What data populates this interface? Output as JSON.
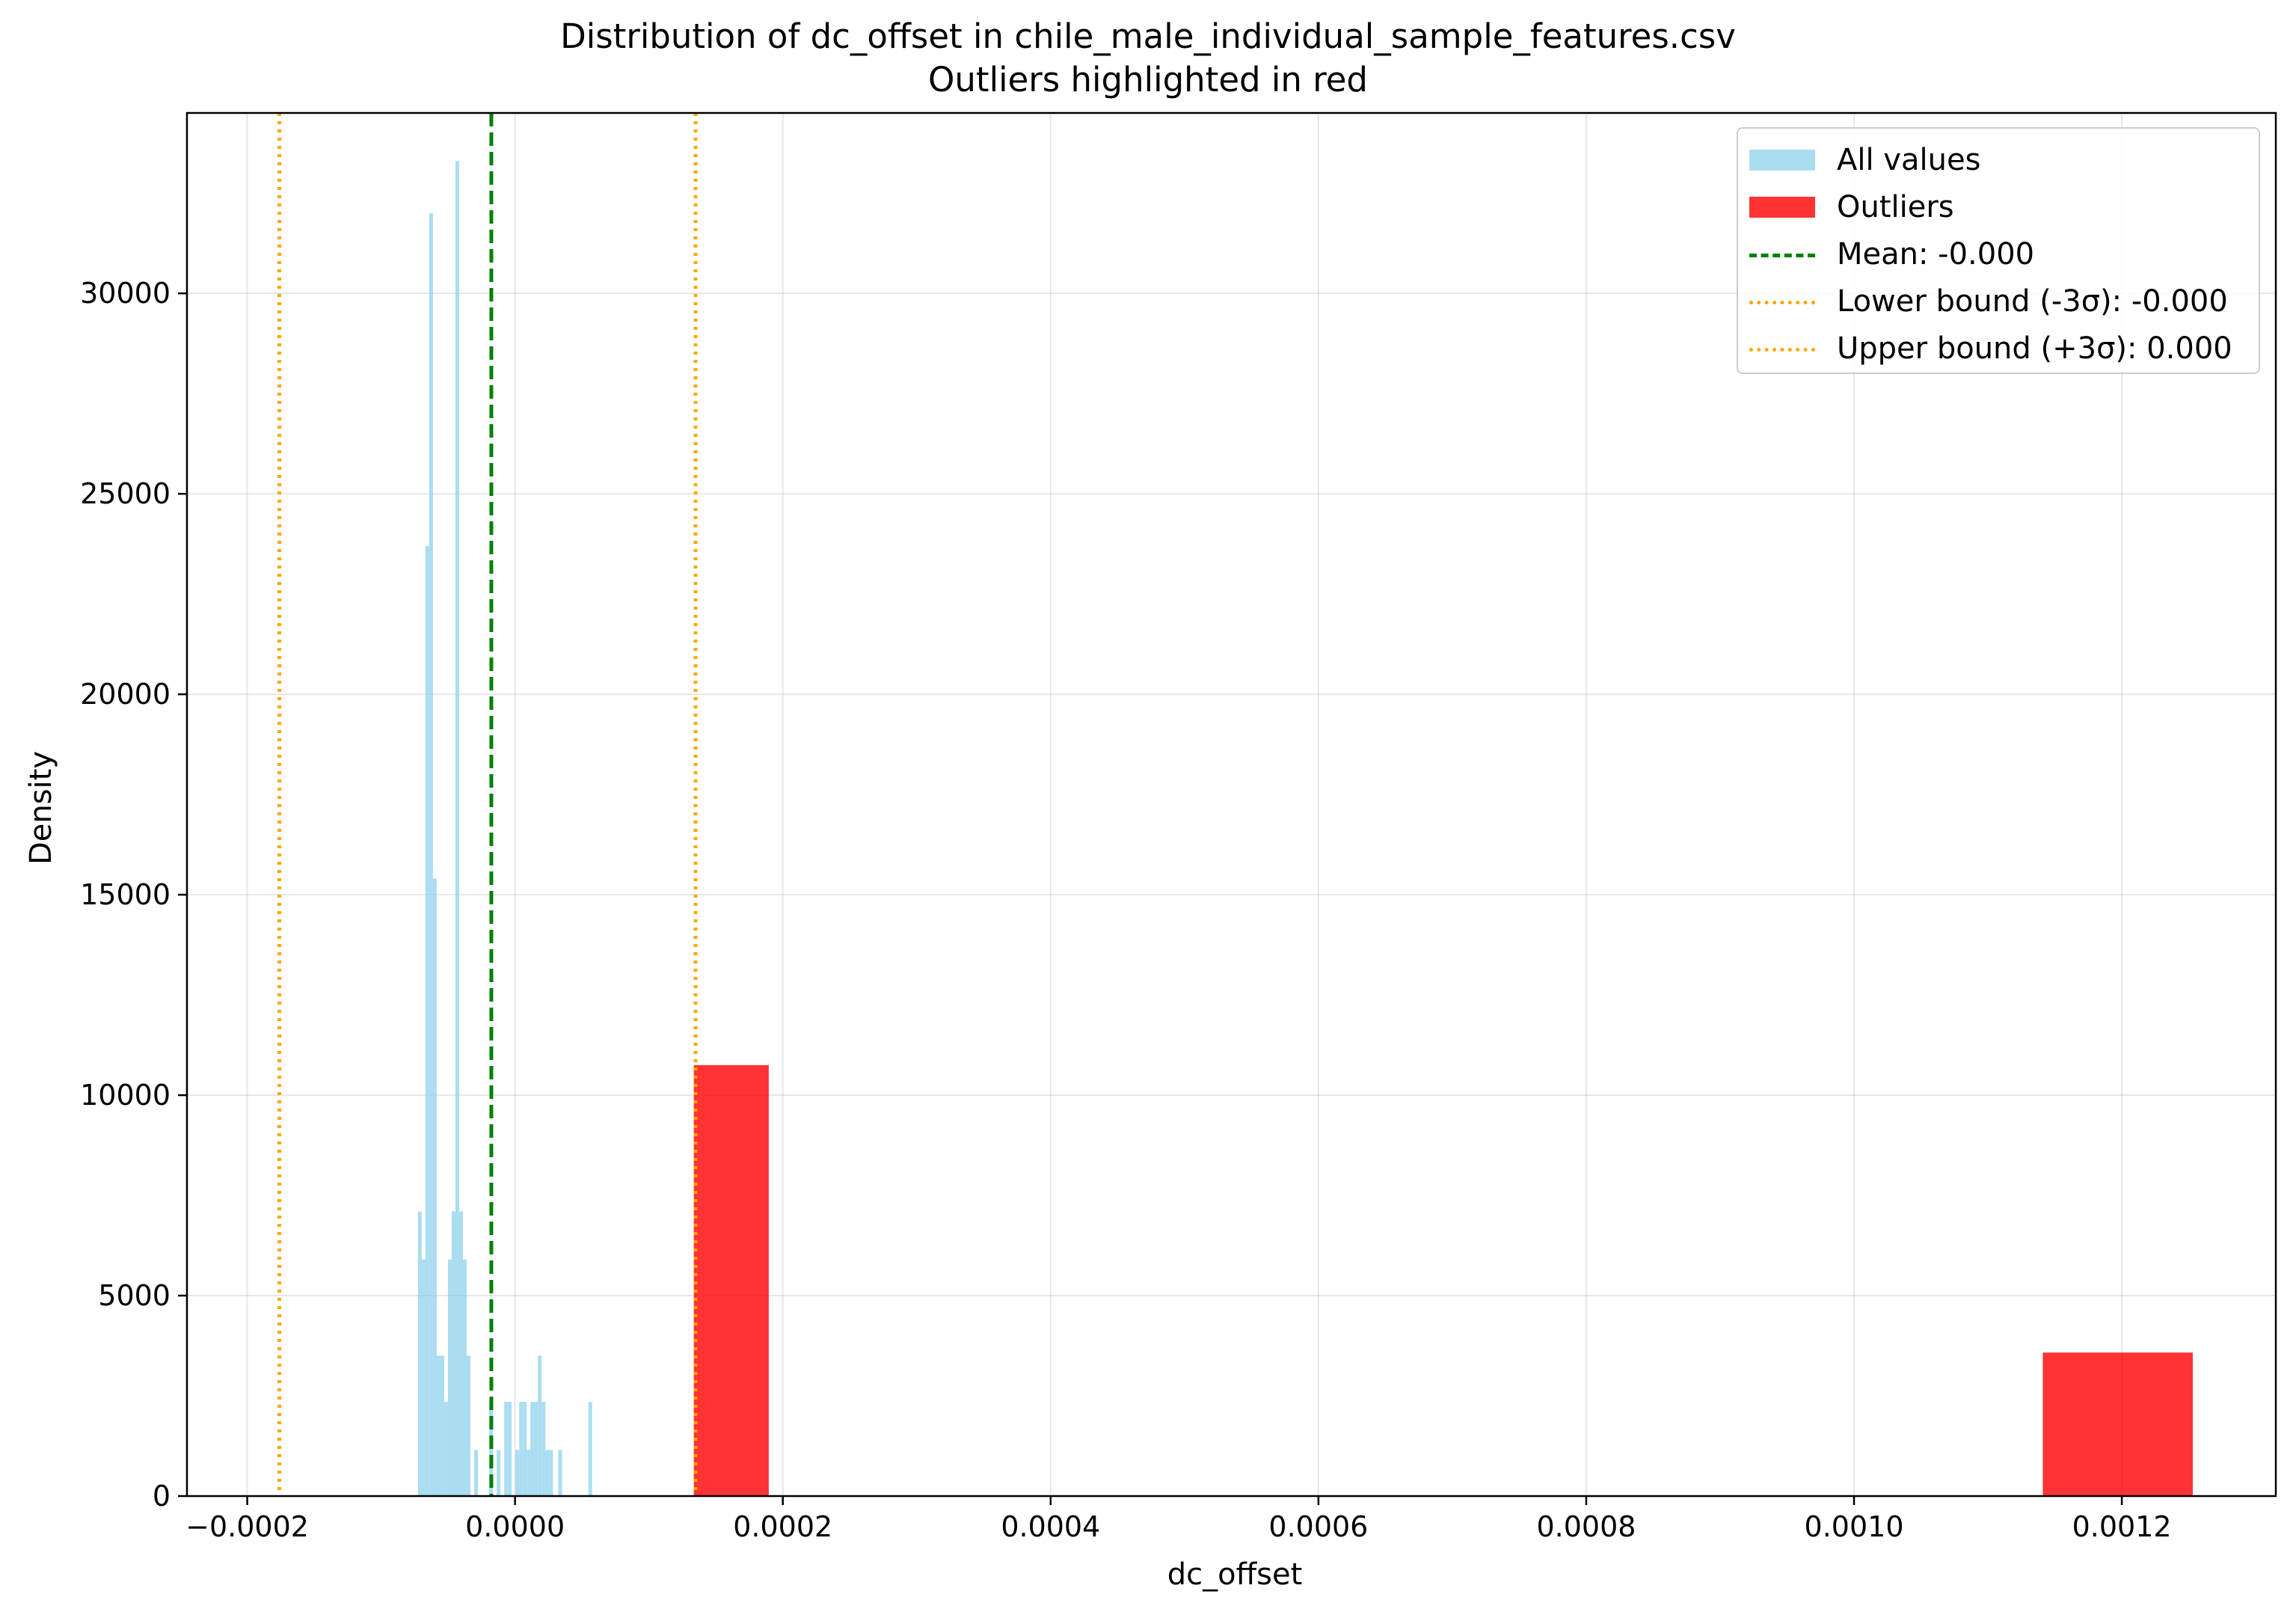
{
  "chart_data": {
    "type": "bar",
    "title": "Distribution of dc_offset in chile_male_individual_sample_features.csv",
    "subtitle": "Outliers highlighted in red",
    "xlabel": "dc_offset",
    "ylabel": "Density",
    "xlim": [
      -0.000245,
      0.001315
    ],
    "ylim": [
      0,
      34500
    ],
    "x_ticks": [
      "−0.0002",
      "0.0000",
      "0.0002",
      "0.0004",
      "0.0006",
      "0.0008",
      "0.0010",
      "0.0012"
    ],
    "x_tick_values": [
      -0.0002,
      0.0,
      0.0002,
      0.0004,
      0.0006,
      0.0008,
      0.001,
      0.0012
    ],
    "y_ticks": [
      "0",
      "5000",
      "10000",
      "15000",
      "20000",
      "25000",
      "30000"
    ],
    "y_tick_values": [
      0,
      5000,
      10000,
      15000,
      20000,
      25000,
      30000
    ],
    "grid": true,
    "legend_position": "top-right",
    "series": [
      {
        "name": "All values",
        "color": "#87ceeb",
        "bin_width": 2.8e-06,
        "bins": [
          [
            -7.25e-05,
            7100
          ],
          [
            -6.97e-05,
            5900
          ],
          [
            -6.69e-05,
            23700
          ],
          [
            -6.41e-05,
            32000
          ],
          [
            -6.13e-05,
            15400
          ],
          [
            -5.85e-05,
            3500
          ],
          [
            -5.57e-05,
            3500
          ],
          [
            -5.29e-05,
            2350
          ],
          [
            -5.01e-05,
            5900
          ],
          [
            -4.73e-05,
            7100
          ],
          [
            -4.45e-05,
            33300
          ],
          [
            -4.17e-05,
            7100
          ],
          [
            -3.89e-05,
            5900
          ],
          [
            -3.61e-05,
            3500
          ],
          [
            -3.05e-05,
            1150
          ],
          [
            -1.93e-05,
            2350
          ],
          [
            -1.37e-05,
            1150
          ],
          [
            -8.1e-06,
            2350
          ],
          [
            -5.3e-06,
            2350
          ],
          [
            3e-07,
            1150
          ],
          [
            3.1e-06,
            2350
          ],
          [
            5.9e-06,
            2350
          ],
          [
            8.7e-06,
            1150
          ],
          [
            1.15e-05,
            2350
          ],
          [
            1.43e-05,
            2350
          ],
          [
            1.71e-05,
            3500
          ],
          [
            1.99e-05,
            2350
          ],
          [
            2.27e-05,
            1150
          ],
          [
            2.55e-05,
            1150
          ],
          [
            3.23e-05,
            1150
          ],
          [
            5.48e-05,
            2350
          ]
        ]
      },
      {
        "name": "Outliers",
        "color": "#ff0000",
        "bins": [
          {
            "x0": 0.0001335,
            "x1": 0.0001895,
            "value": 10750
          },
          {
            "x0": 0.001141,
            "x1": 0.001253,
            "value": 3580
          }
        ]
      }
    ],
    "reference_lines": [
      {
        "name": "Mean",
        "label": "Mean: -0.000",
        "x": -1.77e-05,
        "color": "#008000",
        "style": "dashed"
      },
      {
        "name": "Lower bound",
        "label": "Lower bound (-3σ): -0.000",
        "x": -0.000176,
        "color": "#ffa500",
        "style": "dotted"
      },
      {
        "name": "Upper bound",
        "label": "Upper bound (+3σ): 0.000",
        "x": 0.0001348,
        "color": "#ffa500",
        "style": "dotted"
      }
    ],
    "legend": [
      {
        "label": "All values",
        "kind": "patch",
        "color": "#87ceeb"
      },
      {
        "label": "Outliers",
        "kind": "patch",
        "color": "#ff0000"
      },
      {
        "label": "Mean: -0.000",
        "kind": "dashed",
        "color": "#008000"
      },
      {
        "label": "Lower bound (-3σ): -0.000",
        "kind": "dotted",
        "color": "#ffa500"
      },
      {
        "label": "Upper bound (+3σ): 0.000",
        "kind": "dotted",
        "color": "#ffa500"
      }
    ]
  }
}
